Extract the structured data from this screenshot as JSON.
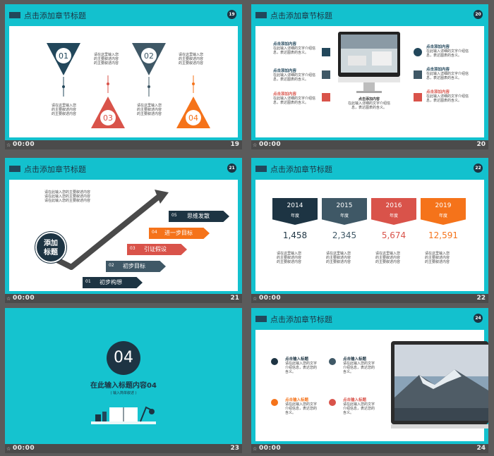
{
  "slides": [
    {
      "number": "19",
      "badge": "19",
      "time": "00:00",
      "title": "点击添加章节标题",
      "items": [
        {
          "num": "01",
          "text": "请在这里输入您\n的主要叙述内容\n的主要叙述内容"
        },
        {
          "num": "02",
          "text": "请在这里输入您\n的主要叙述内容\n的主要叙述内容"
        },
        {
          "num": "03",
          "text": "请在这里输入您\n的主要叙述内容\n的主要叙述内容"
        },
        {
          "num": "04",
          "text": "请在这里输入您\n的主要叙述内容\n的主要叙述内容"
        }
      ],
      "side_text_1": "请在这里输入您\n的主要叙述内容\n的主要叙述内容",
      "side_text_2": "请在这里输入您\n的主要叙述内容\n的主要叙述内容"
    },
    {
      "number": "20",
      "badge": "20",
      "time": "00:00",
      "title": "点击添加章节标题",
      "left": [
        {
          "title": "点击添加内容",
          "text": "在此输入详细的文字介绍信\n息，表达图表的含义。"
        },
        {
          "title": "点击添加内容",
          "text": "在此输入详细的文字介绍信\n息，表达图表的含义。"
        },
        {
          "title": "点击添加内容",
          "text": "在此输入详细的文字介绍信\n息，表达图表的含义。"
        }
      ],
      "right": [
        {
          "title": "点击添加内容",
          "text": "在此输入详细的文字介绍信\n息，表达图表的含义。"
        },
        {
          "title": "点击添加内容",
          "text": "在此输入详细的文字介绍信\n息，表达图表的含义。"
        },
        {
          "title": "点击添加内容",
          "text": "在此输入详细的文字介绍信\n息，表达图表的含义。"
        }
      ],
      "center_title": "点击添加内容",
      "center_text": "在此输入详细的文字介绍信\n息，表达图表的含义。"
    },
    {
      "number": "21",
      "badge": "21",
      "time": "00:00",
      "title": "点击添加章节标题",
      "circle": "添加\n标题",
      "paragraph": "请在此输入您的主要叙述内容\n请在此输入您的主要叙述内容\n请在此输入您的主要叙述内容",
      "steps": [
        {
          "num": "01",
          "label": "初步构想"
        },
        {
          "num": "02",
          "label": "初步目标"
        },
        {
          "num": "03",
          "label": "引证假设"
        },
        {
          "num": "04",
          "label": "进一步目标"
        },
        {
          "num": "05",
          "label": "思维发散"
        }
      ]
    },
    {
      "number": "22",
      "badge": "22",
      "time": "00:00",
      "title": "点击添加章节标题",
      "suffix": "年度",
      "years": [
        {
          "year": "2014",
          "value": "1,458",
          "text": "请在这里输入您\n的主要叙述内容\n的主要叙述内容"
        },
        {
          "year": "2015",
          "value": "2,345",
          "text": "请在这里输入您\n的主要叙述内容\n的主要叙述内容"
        },
        {
          "year": "2016",
          "value": "5,674",
          "text": "请在这里输入您\n的主要叙述内容\n的主要叙述内容"
        },
        {
          "year": "2019",
          "value": "12,591",
          "text": "请在这里输入您\n的主要叙述内容\n的主要叙述内容"
        }
      ]
    },
    {
      "number": "23",
      "time": "00:00",
      "big_number": "04",
      "heading": "在此输入标题内容04",
      "sub": "( 输入简单叙述 )"
    },
    {
      "number": "24",
      "badge": "24",
      "time": "00:00",
      "title": "点击添加章节标题",
      "items": [
        {
          "title": "点击输入标题",
          "text": "请在此输入您的文字\n介绍信息，表达您的\n含义。"
        },
        {
          "title": "点击输入标题",
          "text": "请在此输入您的文字\n介绍信息，表达您的\n含义。"
        },
        {
          "title": "点击输入标题",
          "text": "请在此输入您的文字\n介绍信息，表达您的\n含义。"
        },
        {
          "title": "点击输入标题",
          "text": "请在此输入您的文字\n介绍信息，表达您的\n含义。"
        }
      ]
    }
  ],
  "colors": {
    "teal": "#13c1ce",
    "navy": "#1d3443",
    "slate": "#3f5866",
    "red": "#d9534a",
    "orange": "#f5731a"
  },
  "icons": {
    "footer": "star-icon"
  }
}
